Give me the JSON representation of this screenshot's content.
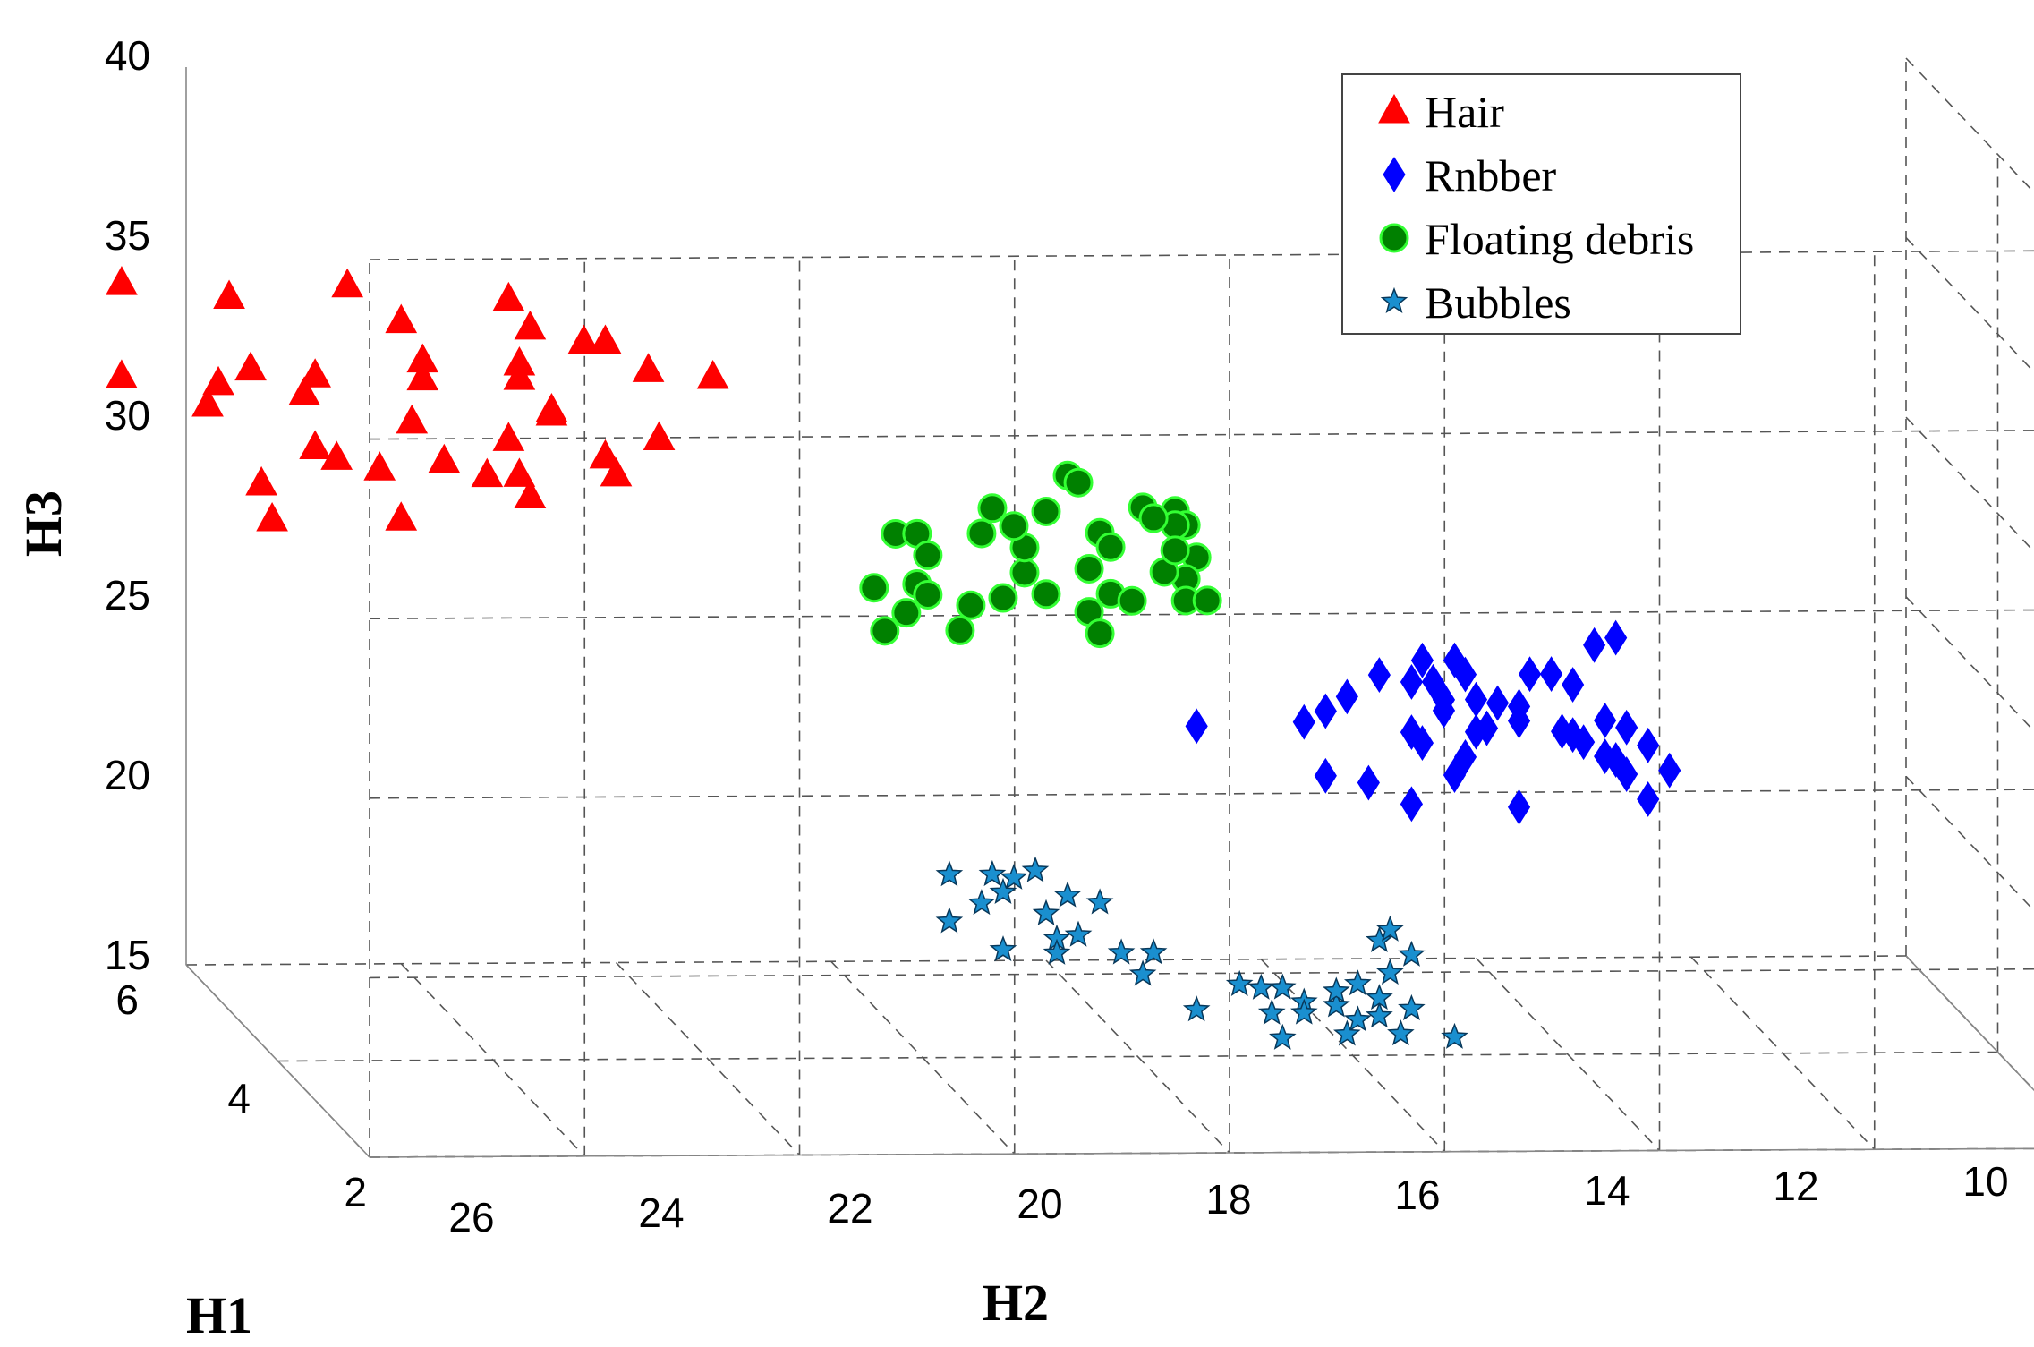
{
  "chart_data": {
    "type": "scatter",
    "projection": "3d",
    "xlabel": "H1",
    "ylabel": "H2",
    "zlabel": "H3",
    "xlim": [
      2,
      6
    ],
    "ylim": [
      10,
      26
    ],
    "zlim": [
      15,
      40
    ],
    "x_ticks": [
      "2",
      "4",
      "6"
    ],
    "y_ticks": [
      "26",
      "24",
      "22",
      "20",
      "18",
      "16",
      "14",
      "12",
      "10"
    ],
    "z_ticks": [
      "15",
      "20",
      "25",
      "30",
      "35",
      "40"
    ],
    "legend_position": "top-right",
    "series": [
      {
        "name": "Hair",
        "marker": "triangle",
        "color": "#ff0000",
        "edge": "#ff0000",
        "points": [
          [
            6,
            26.6,
            34
          ],
          [
            6,
            26.6,
            31.4
          ],
          [
            6,
            25.6,
            33.6
          ],
          [
            6,
            25.7,
            31.2
          ],
          [
            6,
            25.8,
            30.6
          ],
          [
            6,
            25.4,
            31.6
          ],
          [
            6,
            25.3,
            28.4
          ],
          [
            6,
            25.2,
            27.4
          ],
          [
            6,
            24.8,
            29.4
          ],
          [
            6,
            24.8,
            31.4
          ],
          [
            6,
            24.9,
            30.9
          ],
          [
            6,
            24.6,
            29.1
          ],
          [
            6,
            24.2,
            28.8
          ],
          [
            6,
            24.5,
            33.9
          ],
          [
            6,
            24,
            32.9
          ],
          [
            6,
            23.8,
            31.8
          ],
          [
            6,
            23.8,
            31.3
          ],
          [
            6,
            23.9,
            30.1
          ],
          [
            6,
            24,
            27.4
          ],
          [
            6,
            23.6,
            29
          ],
          [
            6,
            23.2,
            28.6
          ],
          [
            6,
            23,
            29.6
          ],
          [
            6,
            22.8,
            28
          ],
          [
            6,
            22.9,
            28.6
          ],
          [
            6,
            23,
            33.5
          ],
          [
            6,
            22.8,
            32.7
          ],
          [
            6,
            22.9,
            31.3
          ],
          [
            6,
            22.6,
            30.4
          ],
          [
            6,
            22.6,
            30.3
          ],
          [
            6,
            22.9,
            31.7
          ],
          [
            6,
            22.3,
            32.3
          ],
          [
            6,
            22.1,
            32.3
          ],
          [
            6,
            22.1,
            29.1
          ],
          [
            6,
            22,
            28.6
          ],
          [
            6,
            21.7,
            31.5
          ],
          [
            6,
            21.6,
            29.6
          ],
          [
            6,
            21.1,
            31.3
          ]
        ]
      },
      {
        "name": "Rnbber",
        "marker": "diamond",
        "color": "#0000ff",
        "edge": "#0000ff",
        "points": [
          [
            6,
            16.6,
            21.5
          ],
          [
            6,
            15.6,
            21.6
          ],
          [
            6,
            15.4,
            21.9
          ],
          [
            6,
            15.2,
            22.3
          ],
          [
            6,
            14.9,
            22.9
          ],
          [
            6,
            14.6,
            22.7
          ],
          [
            6,
            14.5,
            23.3
          ],
          [
            6,
            14.4,
            22.7
          ],
          [
            6,
            14.3,
            22.2
          ],
          [
            6,
            14.1,
            22.9
          ],
          [
            6,
            14.0,
            22.2
          ],
          [
            6,
            14.6,
            21.3
          ],
          [
            6,
            14.3,
            21.9
          ],
          [
            6,
            14.5,
            21.0
          ],
          [
            6,
            14.1,
            20.6
          ],
          [
            6,
            14.2,
            20.1
          ],
          [
            6,
            13.8,
            22.1
          ],
          [
            6,
            13.5,
            22.9
          ],
          [
            6,
            13.3,
            22.9
          ],
          [
            6,
            13.1,
            22.6
          ],
          [
            6,
            13.2,
            21.3
          ],
          [
            6,
            13.0,
            21.0
          ],
          [
            6,
            12.8,
            20.6
          ],
          [
            6,
            12.7,
            20.5
          ],
          [
            6,
            12.9,
            23.7
          ],
          [
            6,
            12.7,
            23.9
          ],
          [
            6,
            12.8,
            21.6
          ],
          [
            6,
            13.1,
            21.2
          ],
          [
            6,
            13.6,
            21.6
          ],
          [
            6,
            13.6,
            19.2
          ],
          [
            6,
            14.6,
            19.3
          ],
          [
            6,
            15.4,
            20.1
          ],
          [
            6,
            15.0,
            19.9
          ],
          [
            6,
            12.4,
            19.4
          ],
          [
            6,
            12.6,
            20.1
          ],
          [
            6,
            12.2,
            20.2
          ],
          [
            6,
            12.6,
            21.4
          ],
          [
            6,
            12.4,
            20.9
          ],
          [
            6,
            14.0,
            21.3
          ],
          [
            6,
            14.2,
            23.3
          ],
          [
            6,
            13.9,
            21.4
          ],
          [
            6,
            13.6,
            22.0
          ]
        ]
      },
      {
        "name": "Floating debris",
        "marker": "circle",
        "color": "#008000",
        "edge": "#33ff33",
        "points": [
          [
            6,
            19.4,
            26.9
          ],
          [
            6,
            19.2,
            26.9
          ],
          [
            6,
            19.1,
            26.3
          ],
          [
            6,
            19.2,
            25.5
          ],
          [
            6,
            19.3,
            24.7
          ],
          [
            6,
            19.1,
            25.2
          ],
          [
            6,
            19.6,
            25.4
          ],
          [
            6,
            19.5,
            24.2
          ],
          [
            6,
            18.8,
            24.2
          ],
          [
            6,
            18.7,
            24.9
          ],
          [
            6,
            18.4,
            25.1
          ],
          [
            6,
            18.0,
            25.2
          ],
          [
            6,
            18.2,
            25.8
          ],
          [
            6,
            18.2,
            26.5
          ],
          [
            6,
            18.0,
            27.5
          ],
          [
            6,
            18.3,
            27.1
          ],
          [
            6,
            18.5,
            27.6
          ],
          [
            6,
            18.6,
            26.9
          ],
          [
            6,
            17.8,
            28.5
          ],
          [
            6,
            17.7,
            28.3
          ],
          [
            6,
            17.5,
            26.9
          ],
          [
            6,
            17.4,
            26.5
          ],
          [
            6,
            17.6,
            25.9
          ],
          [
            6,
            17.4,
            25.2
          ],
          [
            6,
            17.6,
            24.7
          ],
          [
            6,
            17.5,
            24.1
          ],
          [
            6,
            17.1,
            27.6
          ],
          [
            6,
            16.8,
            27.5
          ],
          [
            6,
            16.7,
            27.1
          ],
          [
            6,
            16.6,
            26.2
          ],
          [
            6,
            16.7,
            25.6
          ],
          [
            6,
            16.7,
            25.0
          ],
          [
            6,
            17.2,
            25.0
          ],
          [
            6,
            16.5,
            25.0
          ],
          [
            6,
            16.8,
            27.1
          ],
          [
            6,
            17.0,
            27.3
          ],
          [
            6,
            16.9,
            25.8
          ],
          [
            6,
            16.8,
            26.4
          ]
        ]
      },
      {
        "name": "Bubbles",
        "marker": "star",
        "color": "#1a8fcf",
        "edge": "#08385a",
        "points": [
          [
            6,
            18.9,
            17.4
          ],
          [
            6,
            18.5,
            17.4
          ],
          [
            6,
            18.3,
            17.3
          ],
          [
            6,
            18.1,
            17.5
          ],
          [
            6,
            18.4,
            16.9
          ],
          [
            6,
            18.0,
            16.3
          ],
          [
            6,
            18.6,
            16.6
          ],
          [
            6,
            18.9,
            16.1
          ],
          [
            6,
            18.4,
            15.3
          ],
          [
            6,
            17.8,
            16.8
          ],
          [
            6,
            17.5,
            16.6
          ],
          [
            6,
            17.9,
            15.6
          ],
          [
            6,
            17.7,
            15.7
          ],
          [
            6,
            17.9,
            15.2
          ],
          [
            6,
            17.3,
            15.2
          ],
          [
            6,
            17.0,
            15.2
          ],
          [
            6,
            17.1,
            14.6
          ],
          [
            6,
            16.6,
            13.6
          ],
          [
            6,
            16.2,
            14.3
          ],
          [
            6,
            16.0,
            14.2
          ],
          [
            6,
            15.8,
            14.2
          ],
          [
            6,
            15.9,
            13.5
          ],
          [
            6,
            15.6,
            13.8
          ],
          [
            6,
            15.6,
            13.5
          ],
          [
            6,
            15.3,
            13.7
          ],
          [
            6,
            15.8,
            12.8
          ],
          [
            6,
            15.1,
            13.3
          ],
          [
            6,
            14.9,
            13.4
          ],
          [
            6,
            14.6,
            13.6
          ],
          [
            6,
            15.2,
            12.9
          ],
          [
            6,
            14.7,
            12.9
          ],
          [
            6,
            14.2,
            12.8
          ],
          [
            6,
            14.9,
            13.9
          ],
          [
            6,
            15.1,
            14.3
          ],
          [
            6,
            14.8,
            14.6
          ],
          [
            6,
            15.3,
            14.1
          ],
          [
            6,
            14.9,
            15.5
          ],
          [
            6,
            14.6,
            15.1
          ],
          [
            6,
            14.8,
            15.8
          ]
        ]
      }
    ]
  }
}
